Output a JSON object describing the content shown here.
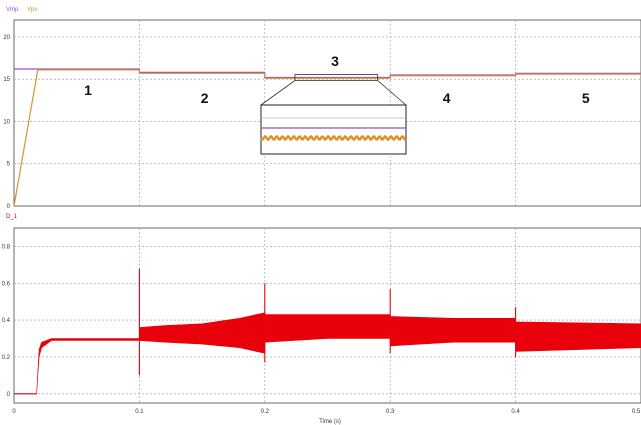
{
  "chart_data": [
    {
      "type": "line",
      "legend": [
        "Vmp",
        "Vpv"
      ],
      "colors": {
        "Vmp": "#9a4fd0",
        "Vpv": "#d9932a"
      },
      "ylim": [
        0,
        22
      ],
      "xlim": [
        0,
        0.5
      ],
      "yticks": [
        "0",
        "5",
        "10",
        "15",
        "20"
      ],
      "ytick_values": [
        0,
        5,
        10,
        15,
        20
      ],
      "series": [
        {
          "name": "Vmp",
          "x": [
            0,
            0.02,
            0.1,
            0.1,
            0.2,
            0.2,
            0.3,
            0.3,
            0.4,
            0.4,
            0.5
          ],
          "y": [
            16.2,
            16.2,
            16.2,
            15.8,
            15.8,
            15.2,
            15.2,
            15.5,
            15.5,
            15.7,
            15.7
          ]
        },
        {
          "name": "Vpv",
          "x": [
            0,
            0.019,
            0.1,
            0.1,
            0.2,
            0.2,
            0.3,
            0.3,
            0.4,
            0.4,
            0.5
          ],
          "y": [
            0,
            16.1,
            16.1,
            15.7,
            15.7,
            15.1,
            15.1,
            15.4,
            15.4,
            15.6,
            15.6
          ]
        }
      ],
      "region_labels": [
        "1",
        "2",
        "3",
        "4",
        "5"
      ],
      "region_centers": [
        0.059,
        0.152,
        0.256,
        0.345,
        0.456
      ],
      "inset": {
        "x_range": [
          0.224,
          0.29
        ],
        "y_value": 15.2
      }
    },
    {
      "type": "area",
      "legend": [
        "D_1"
      ],
      "colors": {
        "D_1": "#e8000b"
      },
      "ylim": [
        -0.05,
        0.9
      ],
      "xlim": [
        0,
        0.5
      ],
      "yticks": [
        "0",
        "0.2",
        "0.4",
        "0.6",
        "0.8"
      ],
      "ytick_values": [
        0,
        0.2,
        0.4,
        0.6,
        0.8
      ],
      "xticks": [
        "0",
        "0.1",
        "0.2",
        "0.3",
        "0.4",
        "0.5"
      ],
      "xtick_values": [
        0,
        0.1,
        0.2,
        0.3,
        0.4,
        0.5
      ],
      "xlabel": "Time (s)",
      "series": [
        {
          "name": "D_1",
          "x": [
            0,
            0.018,
            0.02,
            0.022,
            0.03,
            0.1,
            0.1,
            0.12,
            0.15,
            0.18,
            0.2,
            0.2,
            0.25,
            0.3,
            0.3,
            0.35,
            0.4,
            0.4,
            0.5
          ],
          "upper": [
            0,
            0,
            0.24,
            0.28,
            0.3,
            0.3,
            0.36,
            0.37,
            0.38,
            0.41,
            0.44,
            0.43,
            0.43,
            0.43,
            0.42,
            0.41,
            0.41,
            0.39,
            0.38
          ],
          "lower": [
            0,
            0,
            0.2,
            0.25,
            0.29,
            0.29,
            0.29,
            0.28,
            0.27,
            0.25,
            0.22,
            0.28,
            0.3,
            0.3,
            0.26,
            0.28,
            0.28,
            0.23,
            0.25
          ]
        },
        {
          "name": "spikes",
          "x": [
            0.1,
            0.2,
            0.3,
            0.4
          ],
          "top": [
            0.68,
            0.6,
            0.57,
            0.47
          ],
          "bottom": [
            0.1,
            0.17,
            0.22,
            0.2
          ]
        }
      ]
    }
  ]
}
